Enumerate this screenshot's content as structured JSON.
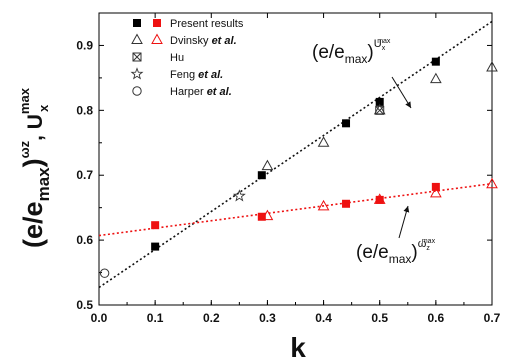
{
  "chart_data": {
    "type": "scatter",
    "xlabel": "k",
    "ylabel_parts": {
      "open": "(e/e",
      "sub": "max",
      "close": ")",
      "sup": "ωz",
      "sep": ", U",
      "sup2": "max",
      "sub2": "x"
    },
    "xlim": [
      0.0,
      0.7
    ],
    "ylim": [
      0.5,
      0.95
    ],
    "x_ticks": [
      "0.0",
      "0.1",
      "0.2",
      "0.3",
      "0.4",
      "0.5",
      "0.6",
      "0.7"
    ],
    "y_ticks": [
      "0.5",
      "0.6",
      "0.7",
      "0.8",
      "0.9"
    ],
    "y_tick_values": [
      0.5,
      0.6,
      0.7,
      0.8,
      0.9
    ],
    "grid": false,
    "legend_position": "top-left",
    "series": [
      {
        "name": "Present results",
        "marker": "filled-square",
        "color": "#000000",
        "x": [
          0.1,
          0.29,
          0.44,
          0.5,
          0.6
        ],
        "y": [
          0.59,
          0.7,
          0.78,
          0.813,
          0.875
        ]
      },
      {
        "name": "Present results",
        "marker": "filled-square",
        "color": "#ee1111",
        "x": [
          0.1,
          0.29,
          0.44,
          0.5,
          0.6
        ],
        "y": [
          0.623,
          0.636,
          0.656,
          0.662,
          0.682
        ]
      },
      {
        "name": "Dvinsky et al.",
        "marker": "open-triangle",
        "color": "#333333",
        "x": [
          0.3,
          0.4,
          0.5,
          0.6,
          0.7
        ],
        "y": [
          0.714,
          0.75,
          0.8,
          0.848,
          0.866
        ]
      },
      {
        "name": "Dvinsky et al.",
        "marker": "open-triangle",
        "color": "#ee1111",
        "x": [
          0.3,
          0.4,
          0.5,
          0.6,
          0.7
        ],
        "y": [
          0.637,
          0.652,
          0.662,
          0.672,
          0.686
        ]
      },
      {
        "name": "Hu",
        "marker": "crossed-square",
        "color": "#333333",
        "x": [
          0.5
        ],
        "y": [
          0.8
        ]
      },
      {
        "name": "Feng et al.",
        "marker": "open-star",
        "color": "#333333",
        "x": [
          0.25
        ],
        "y": [
          0.668
        ]
      },
      {
        "name": "Harper et al.",
        "marker": "open-circle",
        "color": "#333333",
        "x": [
          0.01
        ],
        "y": [
          0.549
        ]
      }
    ],
    "fit_lines": [
      {
        "color": "#111111",
        "x": [
          0.0,
          0.7
        ],
        "y": [
          0.527,
          0.937
        ]
      },
      {
        "color": "#ee1111",
        "x": [
          0.0,
          0.7
        ],
        "y": [
          0.607,
          0.687
        ]
      }
    ],
    "legend": [
      {
        "black": "filled-square",
        "red": "filled-square",
        "text": "Present results",
        "italic": ""
      },
      {
        "black": "open-triangle",
        "red": "open-triangle",
        "text": "Dvinsky ",
        "italic": "et al."
      },
      {
        "black": "crossed-square",
        "red": "",
        "text": "Hu",
        "italic": ""
      },
      {
        "black": "open-star",
        "red": "",
        "text": "Feng ",
        "italic": "et al."
      },
      {
        "black": "open-circle",
        "red": "",
        "text": "Harper ",
        "italic": "et al."
      }
    ],
    "annotations": [
      {
        "id": "ux",
        "base": "(e/e",
        "sub": "max",
        "close": ")",
        "sup": "U",
        "sup_sub": "x",
        "sup_sup": "max",
        "color": "#111111"
      },
      {
        "id": "wz",
        "base": "(e/e",
        "sub": "max",
        "close": ")",
        "sup": "ω",
        "sup_sub": "z",
        "sup_sup": "max",
        "color": "#111111"
      }
    ]
  }
}
